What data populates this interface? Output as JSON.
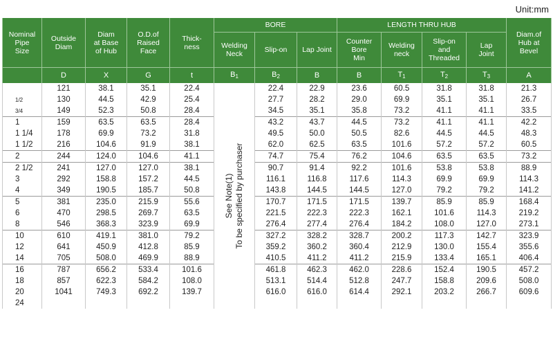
{
  "unit": "Unit:mm",
  "headers": {
    "nominal": [
      "Nominal",
      "Pipe",
      "Size"
    ],
    "outside": [
      "Outside",
      "Diam"
    ],
    "hub": [
      "Diam",
      "at Base",
      "of Hub"
    ],
    "raised": [
      "O.D.of",
      "Raised",
      "Face"
    ],
    "thick": [
      "Thick-",
      "ness"
    ],
    "bore": "BORE",
    "length": "LENGTH THRU HUB",
    "bevel": [
      "Diam.of",
      "Hub at",
      "Bevel"
    ],
    "welding_neck": [
      "Welding",
      "Neck"
    ],
    "slip_on": "Slip-on",
    "lap_joint": "Lap Joint",
    "counter": [
      "Counter",
      "Bore",
      "Min"
    ],
    "welding_neck2": [
      "Welding",
      "neck"
    ],
    "slip_threaded": [
      "Slip-on",
      "and",
      "Threaded"
    ],
    "lap_joint2": [
      "Lap",
      "Joint"
    ]
  },
  "symbols": {
    "D": "D",
    "X": "X",
    "G": "G",
    "t": "t",
    "B1": "B",
    "B1_sub": "1",
    "B2": "B",
    "B2_sub": "2",
    "B": "B",
    "Bmin": "B",
    "T1": "T",
    "T1_sub": "1",
    "T2": "T",
    "T2_sub": "2",
    "T3": "T",
    "T3_sub": "3",
    "A": "A"
  },
  "note": [
    "See Note(1)",
    "To be specified by purchaser"
  ],
  "rows": [
    {
      "size": "",
      "D": "121",
      "X": "38.1",
      "G": "35.1",
      "t": "22.4",
      "B2": "22.4",
      "B": "22.9",
      "Bmin": "23.6",
      "T1": "60.5",
      "T2": "31.8",
      "T3": "31.8",
      "A": "21.3"
    },
    {
      "size": "1/2",
      "D": "130",
      "X": "44.5",
      "G": "42.9",
      "t": "25.4",
      "B2": "27.7",
      "B": "28.2",
      "Bmin": "29.0",
      "T1": "69.9",
      "T2": "35.1",
      "T3": "35.1",
      "A": "26.7"
    },
    {
      "size": "3/4",
      "D": "149",
      "X": "52.3",
      "G": "50.8",
      "t": "28.4",
      "B2": "34.5",
      "B": "35.1",
      "Bmin": "35.8",
      "T1": "73.2",
      "T2": "41.1",
      "T3": "41.1",
      "A": "33.5"
    },
    {
      "size": "1",
      "D": "159",
      "X": "63.5",
      "G": "63.5",
      "t": "28.4",
      "B2": "43.2",
      "B": "43.7",
      "Bmin": "44.5",
      "T1": "73.2",
      "T2": "41.1",
      "T3": "41.1",
      "A": "42.2"
    },
    {
      "size": "1 1/4",
      "D": "178",
      "X": "69.9",
      "G": "73.2",
      "t": "31.8",
      "B2": "49.5",
      "B": "50.0",
      "Bmin": "50.5",
      "T1": "82.6",
      "T2": "44.5",
      "T3": "44.5",
      "A": "48.3"
    },
    {
      "size": "1 1/2",
      "D": "216",
      "X": "104.6",
      "G": "91.9",
      "t": "38.1",
      "B2": "62.0",
      "B": "62.5",
      "Bmin": "63.5",
      "T1": "101.6",
      "T2": "57.2",
      "T3": "57.2",
      "A": "60.5"
    },
    {
      "size": "2",
      "D": "244",
      "X": "124.0",
      "G": "104.6",
      "t": "41.1",
      "B2": "74.7",
      "B": "75.4",
      "Bmin": "76.2",
      "T1": "104.6",
      "T2": "63.5",
      "T3": "63.5",
      "A": "73.2"
    },
    {
      "size": "2 1/2",
      "D": "241",
      "X": "127.0",
      "G": "127.0",
      "t": "38.1",
      "B2": "90.7",
      "B": "91.4",
      "Bmin": "92.2",
      "T1": "101.6",
      "T2": "53.8",
      "T3": "53.8",
      "A": "88.9"
    },
    {
      "size": "3",
      "D": "292",
      "X": "158.8",
      "G": "157.2",
      "t": "44.5",
      "B2": "116.1",
      "B": "116.8",
      "Bmin": "117.6",
      "T1": "114.3",
      "T2": "69.9",
      "T3": "69.9",
      "A": "114.3"
    },
    {
      "size": "4",
      "D": "349",
      "X": "190.5",
      "G": "185.7",
      "t": "50.8",
      "B2": "143.8",
      "B": "144.5",
      "Bmin": "144.5",
      "T1": "127.0",
      "T2": "79.2",
      "T3": "79.2",
      "A": "141.2"
    },
    {
      "size": "5",
      "D": "381",
      "X": "235.0",
      "G": "215.9",
      "t": "55.6",
      "B2": "170.7",
      "B": "171.5",
      "Bmin": "171.5",
      "T1": "139.7",
      "T2": "85.9",
      "T3": "85.9",
      "A": "168.4"
    },
    {
      "size": "6",
      "D": "470",
      "X": "298.5",
      "G": "269.7",
      "t": "63.5",
      "B2": "221.5",
      "B": "222.3",
      "Bmin": "222.3",
      "T1": "162.1",
      "T2": "101.6",
      "T3": "114.3",
      "A": "219.2"
    },
    {
      "size": "8",
      "D": "546",
      "X": "368.3",
      "G": "323.9",
      "t": "69.9",
      "B2": "276.4",
      "B": "277.4",
      "Bmin": "276.4",
      "T1": "184.2",
      "T2": "108.0",
      "T3": "127.0",
      "A": "273.1"
    },
    {
      "size": "10",
      "D": "610",
      "X": "419.1",
      "G": "381.0",
      "t": "79.2",
      "B2": "327.2",
      "B": "328.2",
      "Bmin": "328.7",
      "T1": "200.2",
      "T2": "117.3",
      "T3": "142.7",
      "A": "323.9"
    },
    {
      "size": "12",
      "D": "641",
      "X": "450.9",
      "G": "412.8",
      "t": "85.9",
      "B2": "359.2",
      "B": "360.2",
      "Bmin": "360.4",
      "T1": "212.9",
      "T2": "130.0",
      "T3": "155.4",
      "A": "355.6"
    },
    {
      "size": "14",
      "D": "705",
      "X": "508.0",
      "G": "469.9",
      "t": "88.9",
      "B2": "410.5",
      "B": "411.2",
      "Bmin": "411.2",
      "T1": "215.9",
      "T2": "133.4",
      "T3": "165.1",
      "A": "406.4"
    },
    {
      "size": "16",
      "D": "787",
      "X": "656.2",
      "G": "533.4",
      "t": "101.6",
      "B2": "461.8",
      "B": "462.3",
      "Bmin": "462.0",
      "T1": "228.6",
      "T2": "152.4",
      "T3": "190.5",
      "A": "457.2"
    },
    {
      "size": "18",
      "D": "857",
      "X": "622.3",
      "G": "584.2",
      "t": "108.0",
      "B2": "513.1",
      "B": "514.4",
      "Bmin": "512.8",
      "T1": "247.7",
      "T2": "158.8",
      "T3": "209.6",
      "A": "508.0"
    },
    {
      "size": "20",
      "D": "1041",
      "X": "749.3",
      "G": "692.2",
      "t": "139.7",
      "B2": "616.0",
      "B": "616.0",
      "Bmin": "614.4",
      "T1": "292.1",
      "T2": "203.2",
      "T3": "266.7",
      "A": "609.6"
    },
    {
      "size": "24",
      "D": "",
      "X": "",
      "G": "",
      "t": "",
      "B2": "",
      "B": "",
      "Bmin": "",
      "T1": "",
      "T2": "",
      "T3": "",
      "A": ""
    }
  ]
}
